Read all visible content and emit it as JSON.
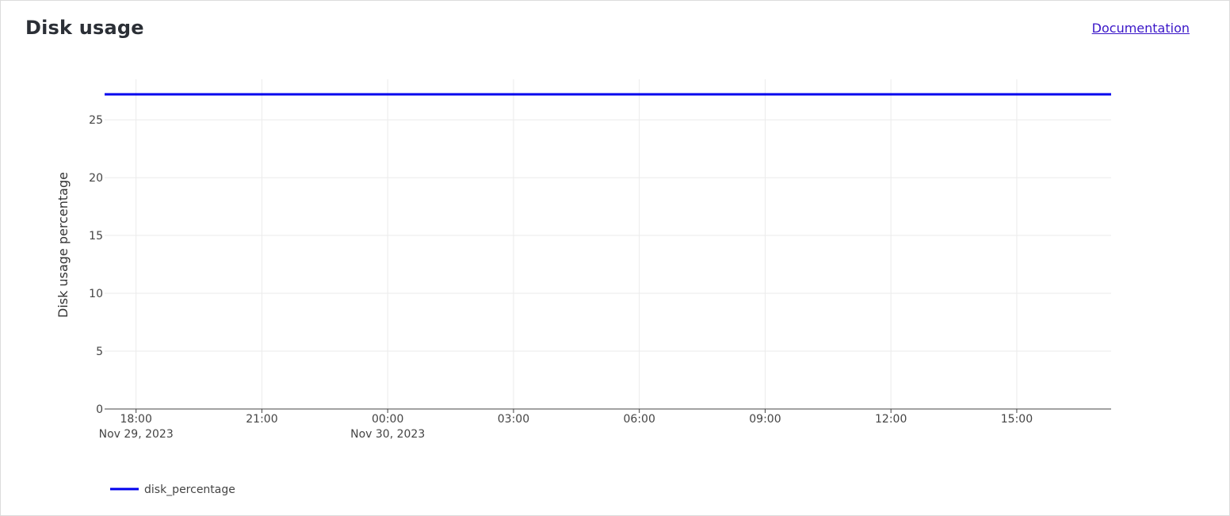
{
  "header": {
    "title": "Disk usage",
    "documentation_label": "Documentation"
  },
  "chart_data": {
    "type": "line",
    "title": "",
    "xlabel": "",
    "ylabel": "Disk usage percentage",
    "x_range": [
      "2023-11-29T17:15",
      "2023-11-30T17:15"
    ],
    "ylim": [
      0,
      28.5
    ],
    "grid": true,
    "legend_position": "bottom-left",
    "y_ticks": [
      0,
      5,
      10,
      15,
      20,
      25
    ],
    "x_ticks": [
      {
        "x": "2023-11-29T18:00",
        "label": "18:00",
        "sublabel": "Nov 29, 2023"
      },
      {
        "x": "2023-11-29T21:00",
        "label": "21:00",
        "sublabel": ""
      },
      {
        "x": "2023-11-30T00:00",
        "label": "00:00",
        "sublabel": "Nov 30, 2023"
      },
      {
        "x": "2023-11-30T03:00",
        "label": "03:00",
        "sublabel": ""
      },
      {
        "x": "2023-11-30T06:00",
        "label": "06:00",
        "sublabel": ""
      },
      {
        "x": "2023-11-30T09:00",
        "label": "09:00",
        "sublabel": ""
      },
      {
        "x": "2023-11-30T12:00",
        "label": "12:00",
        "sublabel": ""
      },
      {
        "x": "2023-11-30T15:00",
        "label": "15:00",
        "sublabel": ""
      }
    ],
    "series": [
      {
        "name": "disk_percentage",
        "color": "#0000ee",
        "points": [
          {
            "x": "2023-11-29T17:15",
            "y": 27.2
          },
          {
            "x": "2023-11-30T17:15",
            "y": 27.2
          }
        ]
      }
    ]
  }
}
